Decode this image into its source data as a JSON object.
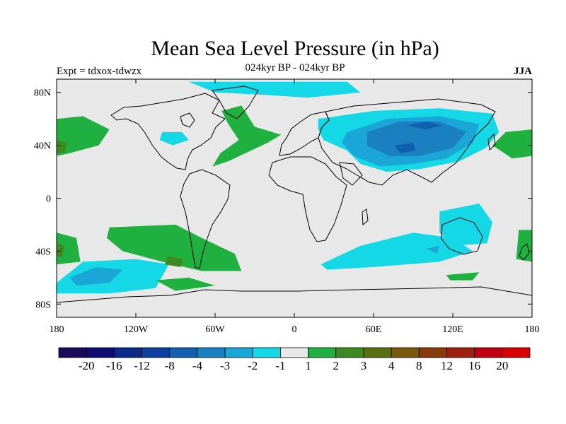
{
  "header": {
    "title": "Mean Sea Level Pressure (in hPa)",
    "subtitle": "024kyr BP - 024kyr BP",
    "experiment": "Expt = tdxox-tdwzx",
    "season": "JJA"
  },
  "map": {
    "projection": "equirectangular",
    "lon_range": [
      -180,
      180
    ],
    "lat_range": [
      -90,
      90
    ],
    "background_color": "#e8e8e8",
    "lat_ticks": [
      {
        "value": 80,
        "label": "80N"
      },
      {
        "value": 40,
        "label": "40N"
      },
      {
        "value": 0,
        "label": "0"
      },
      {
        "value": -40,
        "label": "40S"
      },
      {
        "value": -80,
        "label": "80S"
      }
    ],
    "lon_ticks": [
      {
        "value": -180,
        "label": "180"
      },
      {
        "value": -120,
        "label": "120W"
      },
      {
        "value": -60,
        "label": "60W"
      },
      {
        "value": 0,
        "label": "0"
      },
      {
        "value": 60,
        "label": "60E"
      },
      {
        "value": 120,
        "label": "120E"
      },
      {
        "value": 180,
        "label": "180"
      }
    ]
  },
  "colorbar": {
    "colors": [
      "#1a0a5a",
      "#0d0d73",
      "#0a2a8a",
      "#0b40a0",
      "#1060b0",
      "#1a80c0",
      "#1aa6d6",
      "#14d8e6",
      "#e8e8e8",
      "#1fb040",
      "#3d8a20",
      "#5a7010",
      "#7a5a0a",
      "#8a3a08",
      "#a02010",
      "#c00010",
      "#d80000"
    ],
    "labels": [
      "-20",
      "-16",
      "-12",
      "-8",
      "-4",
      "-3",
      "-2",
      "-1",
      "1",
      "2",
      "3",
      "4",
      "8",
      "12",
      "16",
      "20"
    ]
  },
  "anomaly_regions": [
    {
      "level": "-1",
      "color": "#14d8e6",
      "points": [
        [
          -80,
          88
        ],
        [
          40,
          88
        ],
        [
          50,
          80
        ],
        [
          10,
          76
        ],
        [
          -20,
          78
        ],
        [
          -60,
          80
        ]
      ]
    },
    {
      "level": "-1",
      "color": "#14d8e6",
      "points": [
        [
          -100,
          50
        ],
        [
          -85,
          50
        ],
        [
          -80,
          44
        ],
        [
          -92,
          40
        ],
        [
          -102,
          44
        ]
      ]
    },
    {
      "level": "-1",
      "color": "#14d8e6",
      "points": [
        [
          18,
          60
        ],
        [
          60,
          66
        ],
        [
          110,
          68
        ],
        [
          150,
          64
        ],
        [
          155,
          50
        ],
        [
          145,
          38
        ],
        [
          125,
          28
        ],
        [
          95,
          22
        ],
        [
          70,
          20
        ],
        [
          50,
          26
        ],
        [
          40,
          36
        ],
        [
          22,
          44
        ],
        [
          18,
          52
        ]
      ]
    },
    {
      "level": "-2",
      "color": "#1aa6d6",
      "points": [
        [
          40,
          50
        ],
        [
          70,
          60
        ],
        [
          110,
          62
        ],
        [
          140,
          56
        ],
        [
          135,
          42
        ],
        [
          115,
          30
        ],
        [
          90,
          26
        ],
        [
          65,
          24
        ],
        [
          45,
          32
        ],
        [
          36,
          42
        ]
      ]
    },
    {
      "level": "-3",
      "color": "#1a80c0",
      "points": [
        [
          55,
          50
        ],
        [
          80,
          58
        ],
        [
          110,
          58
        ],
        [
          130,
          50
        ],
        [
          120,
          38
        ],
        [
          95,
          32
        ],
        [
          72,
          32
        ],
        [
          55,
          40
        ]
      ]
    },
    {
      "level": "-4",
      "color": "#1060b0",
      "points": [
        [
          85,
          55
        ],
        [
          100,
          58
        ],
        [
          112,
          55
        ],
        [
          100,
          52
        ]
      ]
    },
    {
      "level": "-4",
      "color": "#1060b0",
      "points": [
        [
          76,
          40
        ],
        [
          90,
          42
        ],
        [
          92,
          36
        ],
        [
          80,
          34
        ]
      ]
    },
    {
      "level": "-1",
      "color": "#14d8e6",
      "points": [
        [
          110,
          -10
        ],
        [
          140,
          -4
        ],
        [
          150,
          -18
        ],
        [
          146,
          -34
        ],
        [
          120,
          -36
        ],
        [
          110,
          -26
        ]
      ]
    },
    {
      "level": "-1",
      "color": "#14d8e6",
      "points": [
        [
          20,
          -50
        ],
        [
          50,
          -36
        ],
        [
          90,
          -26
        ],
        [
          120,
          -30
        ],
        [
          135,
          -40
        ],
        [
          110,
          -48
        ],
        [
          60,
          -52
        ],
        [
          25,
          -54
        ]
      ]
    },
    {
      "level": "-2",
      "color": "#1aa6d6",
      "points": [
        [
          100,
          -38
        ],
        [
          110,
          -36
        ],
        [
          108,
          -42
        ]
      ]
    },
    {
      "level": "-1",
      "color": "#14d8e6",
      "points": [
        [
          -180,
          -64
        ],
        [
          -160,
          -48
        ],
        [
          -120,
          -46
        ],
        [
          -95,
          -50
        ],
        [
          -105,
          -68
        ],
        [
          -140,
          -72
        ],
        [
          -180,
          -72
        ]
      ]
    },
    {
      "level": "-2",
      "color": "#1aa6d6",
      "points": [
        [
          -170,
          -60
        ],
        [
          -150,
          -52
        ],
        [
          -130,
          -54
        ],
        [
          -140,
          -64
        ],
        [
          -165,
          -66
        ]
      ]
    },
    {
      "level": "1",
      "color": "#1fb040",
      "points": [
        [
          -180,
          60
        ],
        [
          -160,
          62
        ],
        [
          -140,
          52
        ],
        [
          -148,
          40
        ],
        [
          -170,
          34
        ],
        [
          -180,
          32
        ]
      ]
    },
    {
      "level": "1",
      "color": "#1fb040",
      "points": [
        [
          160,
          50
        ],
        [
          180,
          52
        ],
        [
          180,
          32
        ],
        [
          165,
          30
        ],
        [
          150,
          40
        ]
      ]
    },
    {
      "level": "1",
      "color": "#1fb040",
      "points": [
        [
          -55,
          66
        ],
        [
          -40,
          70
        ],
        [
          -30,
          54
        ],
        [
          -10,
          48
        ],
        [
          -20,
          42
        ],
        [
          -50,
          28
        ],
        [
          -62,
          24
        ],
        [
          -56,
          34
        ],
        [
          -42,
          44
        ],
        [
          -50,
          56
        ]
      ]
    },
    {
      "level": "1",
      "color": "#1fb040",
      "points": [
        [
          -140,
          -22
        ],
        [
          -90,
          -20
        ],
        [
          -70,
          -30
        ],
        [
          -45,
          -42
        ],
        [
          -40,
          -55
        ],
        [
          -70,
          -55
        ],
        [
          -100,
          -48
        ],
        [
          -130,
          -40
        ],
        [
          -142,
          -30
        ]
      ]
    },
    {
      "level": "2",
      "color": "#3d8a20",
      "points": [
        [
          -96,
          -44
        ],
        [
          -84,
          -46
        ],
        [
          -86,
          -52
        ],
        [
          -98,
          -50
        ]
      ]
    },
    {
      "level": "1",
      "color": "#1fb040",
      "points": [
        [
          -180,
          -26
        ],
        [
          -165,
          -30
        ],
        [
          -162,
          -48
        ],
        [
          -180,
          -50
        ]
      ]
    },
    {
      "level": "1",
      "color": "#1fb040",
      "points": [
        [
          170,
          -24
        ],
        [
          180,
          -24
        ],
        [
          180,
          -48
        ],
        [
          168,
          -46
        ]
      ]
    },
    {
      "level": "2",
      "color": "#3d8a20",
      "points": [
        [
          -180,
          -34
        ],
        [
          -174,
          -36
        ],
        [
          -176,
          -44
        ],
        [
          -180,
          -44
        ]
      ]
    },
    {
      "level": "2",
      "color": "#3d8a20",
      "points": [
        [
          -180,
          44
        ],
        [
          -172,
          42
        ],
        [
          -174,
          34
        ],
        [
          -180,
          34
        ]
      ]
    },
    {
      "level": "1",
      "color": "#1fb040",
      "points": [
        [
          -105,
          -62
        ],
        [
          -80,
          -60
        ],
        [
          -60,
          -66
        ],
        [
          -90,
          -70
        ]
      ]
    },
    {
      "level": "1",
      "color": "#1fb040",
      "points": [
        [
          115,
          -58
        ],
        [
          140,
          -56
        ],
        [
          135,
          -62
        ],
        [
          118,
          -62
        ]
      ]
    }
  ]
}
